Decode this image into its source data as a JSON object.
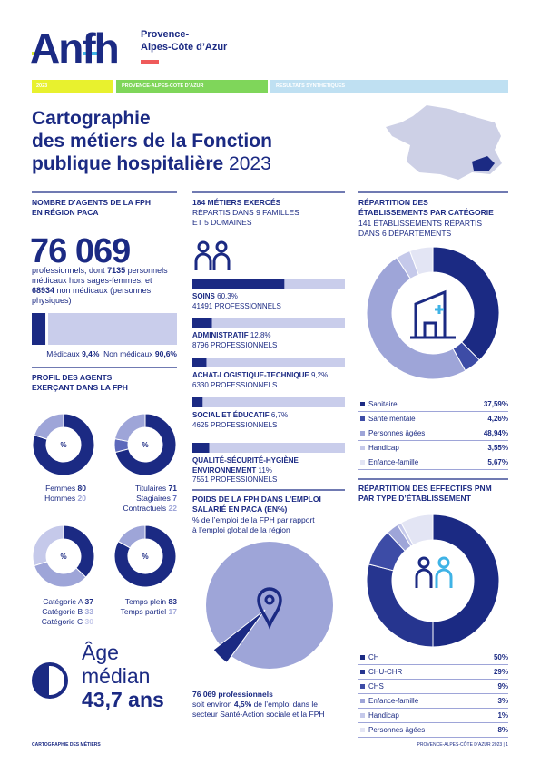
{
  "header": {
    "logo": "Anfh",
    "region_line1": "Provence-",
    "region_line2": "Alpes-Côte d’Azur"
  },
  "tabs": [
    "2023",
    "PROVENCE-ALPES-CÔTE D’AZUR",
    "RÉSULTATS SYNTHÉTIQUES"
  ],
  "title": {
    "lines": [
      "Cartographie",
      "des métiers de la Fonction",
      "publique hospitalière"
    ],
    "year": "2023"
  },
  "agents": {
    "heading": [
      "NOMBRE D’AGENTS DE LA FPH",
      "EN RÉGION PACA"
    ],
    "total": "76 069",
    "text": [
      "professionnels, dont ",
      "7135",
      " personnels médicaux hors sages-femmes, et ",
      "68934",
      " non médicaux (personnes physiques)"
    ],
    "split": {
      "names": [
        "Médicaux",
        "Non médicaux"
      ],
      "values": [
        9.4,
        90.6
      ],
      "value_labels": [
        "9,4%",
        "90,6%"
      ],
      "colors": [
        "#1b2a83",
        "#c9cdeb"
      ]
    }
  },
  "profil": {
    "heading": [
      "PROFIL DES AGENTS",
      "EXERÇANT DANS LA FPH"
    ],
    "center_label": "%",
    "donuts": [
      {
        "names": [
          "Femmes",
          "Hommes"
        ],
        "values": [
          80,
          20
        ],
        "colors": [
          "#1b2a83",
          "#9ea5d8"
        ]
      },
      {
        "names": [
          "Titulaires",
          "Stagiaires",
          "Contractuels"
        ],
        "values": [
          71,
          7,
          22
        ],
        "colors": [
          "#1b2a83",
          "#5d69bb",
          "#9ea5d8"
        ]
      },
      {
        "names": [
          "Catégorie A",
          "Catégorie B",
          "Catégorie C"
        ],
        "values": [
          37,
          33,
          30
        ],
        "colors": [
          "#1b2a83",
          "#9ea5d8",
          "#c5c9ea"
        ]
      },
      {
        "names": [
          "Temps plein",
          "Temps partiel"
        ],
        "values": [
          83,
          17
        ],
        "colors": [
          "#1b2a83",
          "#9ea5d8"
        ]
      }
    ]
  },
  "age": {
    "label_lines": [
      "Âge",
      "médian"
    ],
    "value": "43,7 ans"
  },
  "metiers": {
    "heading": "184 MÉTIERS EXERCÉS",
    "sub": [
      "RÉPARTIS DANS 9 FAMILLES",
      "ET 5 DOMAINES"
    ],
    "xlim": [
      0,
      100
    ],
    "colors": [
      "#1b2a83",
      "#c9cdeb"
    ],
    "domains": [
      {
        "name": "SOINS",
        "value": 60.3,
        "value_label": "60,3%",
        "count": "41491 PROFESSIONNELS"
      },
      {
        "name": "ADMINISTRATIF",
        "value": 12.8,
        "value_label": "12,8%",
        "count": "8796 PROFESSIONNELS"
      },
      {
        "name": "ACHAT-LOGISTIQUE-TECHNIQUE",
        "value": 9.2,
        "value_label": "9,2%",
        "count": "6330 PROFESSIONNELS"
      },
      {
        "name": "SOCIAL ET ÉDUCATIF",
        "value": 6.7,
        "value_label": "6,7%",
        "count": "4625 PROFESSIONNELS"
      },
      {
        "name": "QUALITÉ-SÉCURITÉ-HYGIÈNE ENVIRONNEMENT",
        "value": 11,
        "value_label": "11%",
        "count": "7551 PROFESSIONNELS"
      }
    ]
  },
  "poids": {
    "heading": [
      "POIDS DE LA FPH DANS L’EMPLOI",
      "SALARIÉ EN PACA (EN%)"
    ],
    "desc": [
      "% de l’emploi de la FPH par rapport",
      "à l’emploi global de la région"
    ],
    "value": 4.5,
    "value_label": "4,5%",
    "colors": [
      "#1b2a83",
      "#9ea5d8"
    ],
    "note": {
      "bold": "76 069 professionnels",
      "pre": "soit environ ",
      "post": " de l’emploi dans le secteur Santé-Action sociale et la FPH"
    }
  },
  "etablissements": {
    "heading": [
      "RÉPARTITION DES",
      "ÉTABLISSEMENTS PAR CATÉGORIE"
    ],
    "sub": [
      "141 ÉTABLISSEMENTS RÉPARTIS",
      "DANS 6 DÉPARTEMENTS"
    ],
    "names": [
      "Sanitaire",
      "Santé mentale",
      "Personnes âgées",
      "Handicap",
      "Enfance-famille"
    ],
    "values": [
      37.59,
      4.26,
      48.94,
      3.55,
      5.67
    ],
    "value_labels": [
      "37,59%",
      "4,26%",
      "48,94%",
      "3,55%",
      "5,67%"
    ],
    "colors": [
      "#1b2a83",
      "#3d4ca6",
      "#9ea5d8",
      "#c5c9ea",
      "#e3e5f4"
    ]
  },
  "effectifs": {
    "heading": [
      "RÉPARTITION DES EFFECTIFS PNM",
      "PAR TYPE D’ÉTABLISSEMENT"
    ],
    "names": [
      "CH",
      "CHU-CHR",
      "CHS",
      "Enfance-famille",
      "Handicap",
      "Personnes âgées"
    ],
    "values": [
      50,
      29,
      9,
      3,
      1,
      8
    ],
    "value_labels": [
      "50%",
      "29%",
      "9%",
      "3%",
      "1%",
      "8%"
    ],
    "colors": [
      "#1b2a83",
      "#26358f",
      "#3d4ca6",
      "#9ea5d8",
      "#c5c9ea",
      "#e3e5f4"
    ]
  },
  "footer": {
    "left": "CARTOGRAPHIE DES MÉTIERS",
    "right": "PROVENCE-ALPES-CÔTE D’AZUR 2023 | 1"
  }
}
